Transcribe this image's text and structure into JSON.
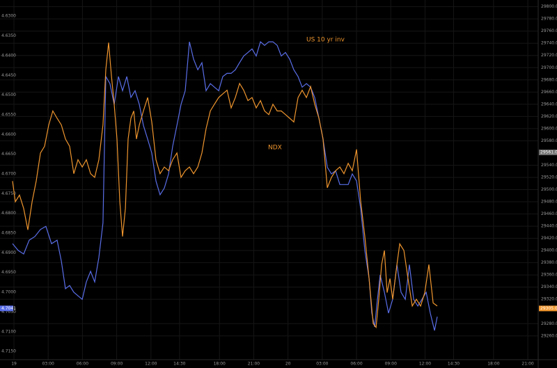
{
  "chart_data": {
    "type": "line",
    "annotations": [
      "US 10 yr inv",
      "NDX"
    ],
    "grid": true,
    "xlim": [
      -1.22,
      45.91
    ],
    "xticks": [
      {
        "value": 0,
        "label": "19"
      },
      {
        "value": 3,
        "label": "03:00"
      },
      {
        "value": 6,
        "label": "06:00"
      },
      {
        "value": 9,
        "label": "09:00"
      },
      {
        "value": 12,
        "label": "12:00"
      },
      {
        "value": 14.5,
        "label": "14:30"
      },
      {
        "value": 18,
        "label": "18:00"
      },
      {
        "value": 21,
        "label": "21:00"
      },
      {
        "value": 24,
        "label": "20"
      },
      {
        "value": 27,
        "label": "03:00"
      },
      {
        "value": 30,
        "label": "06:00"
      },
      {
        "value": 33,
        "label": "09:00"
      },
      {
        "value": 36,
        "label": "12:00"
      },
      {
        "value": 38.5,
        "label": "14:30"
      },
      {
        "value": 42,
        "label": "18:00"
      },
      {
        "value": 45,
        "label": "21:00"
      }
    ],
    "ylim": [
      4.7171,
      4.6259
    ],
    "yticks": [
      {
        "value": 4.63,
        "label": "4.6300"
      },
      {
        "value": 4.635,
        "label": "4.6350"
      },
      {
        "value": 4.64,
        "label": "4.6400"
      },
      {
        "value": 4.645,
        "label": "4.6450"
      },
      {
        "value": 4.65,
        "label": "4.6500"
      },
      {
        "value": 4.655,
        "label": "4.6550"
      },
      {
        "value": 4.66,
        "label": "4.6600"
      },
      {
        "value": 4.665,
        "label": "4.6650"
      },
      {
        "value": 4.67,
        "label": "4.6700"
      },
      {
        "value": 4.675,
        "label": "4.6750"
      },
      {
        "value": 4.68,
        "label": "4.6800"
      },
      {
        "value": 4.685,
        "label": "4.6850"
      },
      {
        "value": 4.69,
        "label": "4.6900"
      },
      {
        "value": 4.695,
        "label": "4.6950"
      },
      {
        "value": 4.7,
        "label": "4.7000"
      },
      {
        "value": 4.705,
        "label": "4.7050"
      },
      {
        "value": 4.71,
        "label": "4.7100"
      },
      {
        "value": 4.715,
        "label": "4.7150"
      }
    ],
    "y2lim": [
      29221,
      29811
    ],
    "y2ticks": [
      {
        "value": 29800,
        "label": "29800.00"
      },
      {
        "value": 29780,
        "label": "29780.00"
      },
      {
        "value": 29760,
        "label": "29760.00"
      },
      {
        "value": 29740,
        "label": "29740.00"
      },
      {
        "value": 29720,
        "label": "29720.00"
      },
      {
        "value": 29700,
        "label": "29700.00"
      },
      {
        "value": 29680,
        "label": "29680.00"
      },
      {
        "value": 29660,
        "label": "29660.00"
      },
      {
        "value": 29640,
        "label": "29640.00"
      },
      {
        "value": 29620,
        "label": "29620.00"
      },
      {
        "value": 29600,
        "label": "29600.00"
      },
      {
        "value": 29580,
        "label": "29580.00"
      },
      {
        "value": 29540,
        "label": "29540.00"
      },
      {
        "value": 29520,
        "label": "29520.00"
      },
      {
        "value": 29500,
        "label": "29500.00"
      },
      {
        "value": 29480,
        "label": "29480.00"
      },
      {
        "value": 29460,
        "label": "29460.00"
      },
      {
        "value": 29440,
        "label": "29440.00"
      },
      {
        "value": 29420,
        "label": "29420.00"
      },
      {
        "value": 29400,
        "label": "29400.00"
      },
      {
        "value": 29380,
        "label": "29380.00"
      },
      {
        "value": 29360,
        "label": "29360.00"
      },
      {
        "value": 29340,
        "label": "29340.00"
      },
      {
        "value": 29320,
        "label": "29320.00"
      },
      {
        "value": 29280,
        "label": "29280.00"
      },
      {
        "value": 29260,
        "label": "29260.00"
      }
    ],
    "markers": [
      {
        "value": 4.7041,
        "label": "4.7041",
        "color": "#5a6ee8",
        "axis": "y"
      },
      {
        "value": 29561,
        "label": "29561.00",
        "color": "#707070",
        "axis": "y2"
      },
      {
        "value": 29305,
        "label": "29305.00",
        "color": "#f0962e",
        "axis": "y2"
      }
    ],
    "series": [
      {
        "name": "US 10 yr inv",
        "color": "#5a6ee8",
        "axis": "y",
        "x": [
          -0.12,
          0.37,
          0.85,
          1.34,
          1.83,
          2.32,
          2.8,
          3.29,
          3.78,
          4.15,
          4.51,
          4.88,
          5.24,
          5.61,
          5.98,
          6.34,
          6.71,
          7.07,
          7.44,
          7.8,
          8.05,
          8.41,
          8.78,
          9.15,
          9.51,
          9.88,
          10.24,
          10.61,
          10.98,
          11.34,
          11.71,
          12.07,
          12.44,
          12.8,
          13.17,
          13.54,
          13.9,
          14.27,
          14.63,
          15.0,
          15.37,
          15.73,
          16.1,
          16.46,
          16.83,
          17.2,
          17.56,
          17.93,
          18.29,
          18.66,
          19.02,
          19.39,
          19.76,
          20.12,
          20.49,
          20.85,
          21.22,
          21.59,
          21.95,
          22.32,
          22.68,
          23.05,
          23.41,
          23.78,
          24.15,
          24.51,
          24.88,
          25.24,
          25.61,
          25.98,
          26.34,
          26.71,
          27.07,
          27.44,
          27.8,
          28.17,
          28.54,
          28.9,
          29.27,
          29.63,
          30.0,
          30.37,
          30.73,
          31.1,
          31.34,
          31.59,
          31.83,
          32.07,
          32.44,
          32.8,
          33.17,
          33.54,
          33.9,
          34.27,
          34.63,
          35.0,
          35.37,
          35.73,
          36.1,
          36.46,
          36.83,
          37.07
        ],
        "values": [
          4.6877,
          4.6894,
          4.6903,
          4.6868,
          4.6859,
          4.6841,
          4.6833,
          4.6877,
          4.6868,
          4.6921,
          4.6991,
          4.6983,
          4.7,
          4.7009,
          4.7018,
          4.6974,
          4.6947,
          4.6974,
          4.6912,
          4.6824,
          4.6453,
          4.6471,
          4.6524,
          4.6453,
          4.6489,
          4.6453,
          4.6506,
          4.6489,
          4.6524,
          4.6577,
          4.6612,
          4.6647,
          4.6718,
          4.6753,
          4.6736,
          4.67,
          4.663,
          4.6577,
          4.6524,
          4.6489,
          4.6365,
          4.6409,
          4.6436,
          4.6418,
          4.6489,
          4.6471,
          4.648,
          4.6489,
          4.6453,
          4.6445,
          4.6445,
          4.6436,
          4.6418,
          4.6401,
          4.6392,
          4.6383,
          4.6401,
          4.6365,
          4.6374,
          4.6365,
          4.6365,
          4.6374,
          4.6401,
          4.6392,
          4.6409,
          4.6436,
          4.6453,
          4.648,
          4.6471,
          4.648,
          4.6506,
          4.6559,
          4.6612,
          4.6683,
          4.67,
          4.6692,
          4.6727,
          4.6727,
          4.6727,
          4.67,
          4.6718,
          4.6789,
          4.6894,
          4.6965,
          4.7053,
          4.7088,
          4.7018,
          4.6956,
          4.7,
          4.7053,
          4.7018,
          4.693,
          4.7,
          4.7018,
          4.693,
          4.7018,
          4.7035,
          4.7018,
          4.7,
          4.7053,
          4.7097,
          4.7062
        ]
      },
      {
        "name": "NDX",
        "color": "#f0962e",
        "axis": "y2",
        "x": [
          -0.12,
          0.12,
          0.49,
          0.85,
          1.22,
          1.59,
          1.95,
          2.32,
          2.68,
          3.05,
          3.41,
          3.78,
          4.15,
          4.51,
          4.88,
          5.24,
          5.61,
          5.98,
          6.34,
          6.71,
          7.07,
          7.44,
          7.8,
          8.05,
          8.29,
          8.54,
          8.78,
          9.02,
          9.27,
          9.51,
          9.76,
          10.0,
          10.24,
          10.49,
          10.73,
          10.98,
          11.34,
          11.71,
          12.07,
          12.44,
          12.8,
          13.17,
          13.54,
          13.9,
          14.27,
          14.63,
          15.0,
          15.37,
          15.73,
          16.1,
          16.46,
          16.83,
          17.2,
          17.56,
          17.93,
          18.29,
          18.66,
          19.02,
          19.39,
          19.76,
          20.12,
          20.49,
          20.85,
          21.22,
          21.59,
          21.95,
          22.32,
          22.68,
          23.05,
          23.41,
          23.78,
          24.15,
          24.51,
          24.88,
          25.24,
          25.61,
          25.98,
          26.34,
          26.71,
          27.07,
          27.44,
          27.8,
          28.17,
          28.54,
          28.9,
          29.27,
          29.63,
          30.0,
          30.37,
          30.73,
          31.1,
          31.46,
          31.71,
          31.95,
          32.2,
          32.44,
          32.68,
          32.93,
          33.17,
          33.54,
          33.78,
          34.15,
          34.51,
          34.88,
          35.24,
          35.61,
          35.98,
          36.34,
          36.71,
          37.07
        ],
        "values": [
          29514,
          29480,
          29491,
          29469,
          29434,
          29480,
          29514,
          29560,
          29571,
          29606,
          29629,
          29617,
          29606,
          29583,
          29571,
          29526,
          29549,
          29537,
          29549,
          29526,
          29520,
          29549,
          29606,
          29697,
          29741,
          29686,
          29640,
          29583,
          29480,
          29423,
          29469,
          29583,
          29617,
          29629,
          29583,
          29606,
          29629,
          29651,
          29611,
          29549,
          29526,
          29537,
          29531,
          29549,
          29560,
          29520,
          29531,
          29537,
          29526,
          29537,
          29560,
          29600,
          29629,
          29640,
          29651,
          29657,
          29663,
          29634,
          29651,
          29674,
          29663,
          29646,
          29651,
          29634,
          29646,
          29629,
          29623,
          29640,
          29629,
          29629,
          29623,
          29617,
          29611,
          29651,
          29663,
          29651,
          29669,
          29640,
          29617,
          29583,
          29503,
          29520,
          29531,
          29537,
          29526,
          29543,
          29531,
          29566,
          29480,
          29423,
          29354,
          29280,
          29274,
          29320,
          29377,
          29400,
          29331,
          29354,
          29320,
          29377,
          29411,
          29400,
          29354,
          29309,
          29320,
          29309,
          29331,
          29377,
          29314,
          29309
        ]
      }
    ]
  }
}
